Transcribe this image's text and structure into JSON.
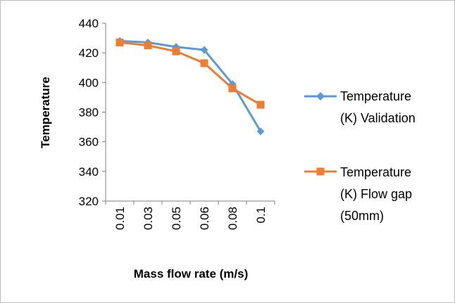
{
  "chart_data": {
    "type": "line",
    "categories": [
      "0.01",
      "0.03",
      "0.05",
      "0.06",
      "0.08",
      "0.1"
    ],
    "series": [
      {
        "name": "Temperature (K) Validation",
        "values": [
          428,
          427,
          424,
          422,
          399,
          367
        ],
        "color": "#5B9BD5",
        "marker": "diamond"
      },
      {
        "name": "Temperature (K) Flow gap (50mm)",
        "values": [
          427,
          425,
          421,
          413,
          396,
          385
        ],
        "color": "#ED7D31",
        "marker": "square"
      }
    ],
    "xlabel": "Mass flow rate (m/s)",
    "ylabel": "Temperature",
    "ylim": [
      320,
      440
    ],
    "yticks": [
      "440",
      "420",
      "400",
      "380",
      "360",
      "340",
      "320"
    ],
    "grid": false,
    "legend_position": "right"
  },
  "legend": {
    "series1_lines": [
      "Temperature",
      "(K) Validation"
    ],
    "series2_lines": [
      "Temperature",
      "(K) Flow gap",
      "(50mm)"
    ]
  }
}
